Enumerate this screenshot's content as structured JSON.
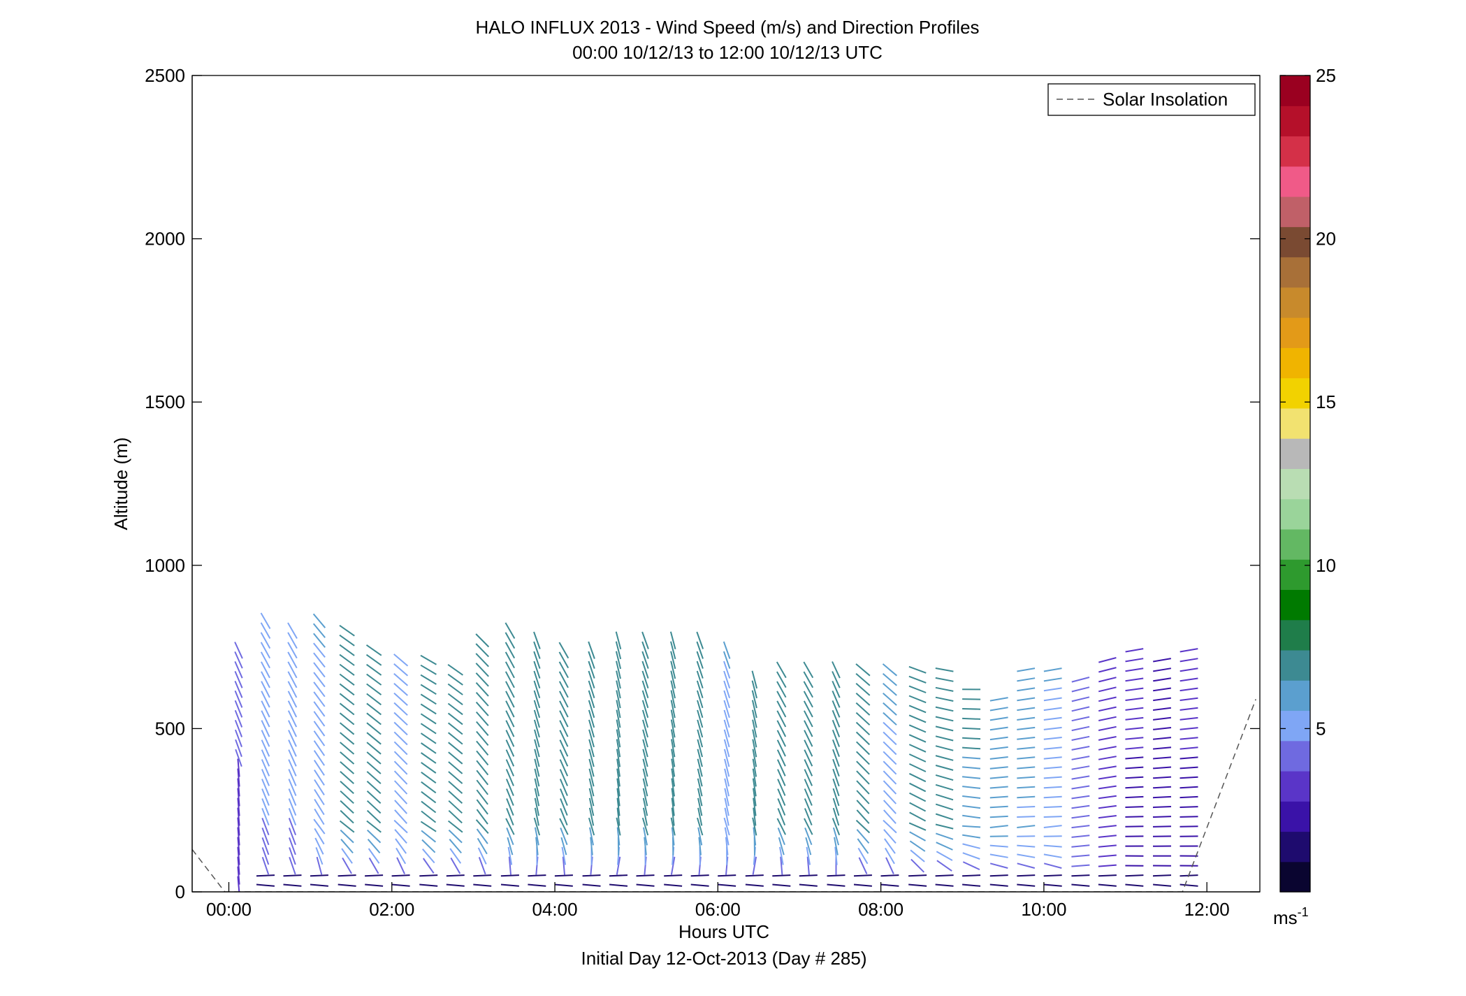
{
  "chart_data": {
    "type": "scatter",
    "subtype": "wind-barb-profiles",
    "title": "HALO INFLUX 2013 - Wind Speed (m/s) and Direction Profiles",
    "subtitle": "00:00 10/12/13 to 12:00 10/12/13  UTC",
    "xlabel": "Hours UTC",
    "xlabel2": "Initial Day 12-Oct-2013 (Day # 285)",
    "ylabel": "Altitude (m)",
    "xlim": [
      -0.45,
      12.65
    ],
    "ylim": [
      0,
      2500
    ],
    "x_ticks": [
      {
        "value": 0,
        "label": "00:00"
      },
      {
        "value": 2,
        "label": "02:00"
      },
      {
        "value": 4,
        "label": "04:00"
      },
      {
        "value": 6,
        "label": "06:00"
      },
      {
        "value": 8,
        "label": "08:00"
      },
      {
        "value": 10,
        "label": "10:00"
      },
      {
        "value": 12,
        "label": "12:00"
      }
    ],
    "y_ticks": [
      {
        "value": 0,
        "label": "0"
      },
      {
        "value": 500,
        "label": "500"
      },
      {
        "value": 1000,
        "label": "1000"
      },
      {
        "value": 1500,
        "label": "1500"
      },
      {
        "value": 2000,
        "label": "2000"
      },
      {
        "value": 2500,
        "label": "2500"
      }
    ],
    "grid": false,
    "legend": {
      "position": "top-right",
      "entries": [
        "Solar Insolation"
      ]
    },
    "colorbar": {
      "min": 0,
      "max": 25,
      "ticks": [
        {
          "value": 5,
          "label": "5"
        },
        {
          "value": 10,
          "label": "10"
        },
        {
          "value": 15,
          "label": "15"
        },
        {
          "value": 20,
          "label": "20"
        },
        {
          "value": 25,
          "label": "25"
        }
      ],
      "unit_label": "ms",
      "unit_superscript": "-1",
      "colors": [
        "#0a0530",
        "#1e0b6e",
        "#3a12a8",
        "#5a35c8",
        "#6f6ae0",
        "#7fa6f5",
        "#5b9fcf",
        "#3d8a92",
        "#1f7d4a",
        "#007a00",
        "#2e9a2e",
        "#63b863",
        "#9ad49a",
        "#b9ddb3",
        "#b8b8b8",
        "#f2e270",
        "#f2d200",
        "#f0b400",
        "#e39a18",
        "#c88a2c",
        "#a87038",
        "#7a4a32",
        "#c06068",
        "#f05a88",
        "#d43048",
        "#b5102a",
        "#9a0020"
      ]
    },
    "solar_insolation_points": [
      [
        -0.45,
        130
      ],
      [
        -0.05,
        0
      ],
      [
        11.7,
        0
      ],
      [
        12.6,
        590
      ]
    ],
    "x": [
      0.12,
      0.45,
      0.78,
      1.11,
      1.45,
      1.78,
      2.11,
      2.45,
      2.78,
      3.11,
      3.45,
      3.78,
      4.11,
      4.45,
      4.78,
      5.11,
      5.45,
      5.78,
      6.11,
      6.45,
      6.78,
      7.11,
      7.45,
      7.78,
      8.11,
      8.45,
      8.78,
      9.11,
      9.45,
      9.78,
      10.11,
      10.45,
      10.78,
      11.11,
      11.45,
      11.78
    ],
    "profile_top_m": [
      760,
      830,
      800,
      830,
      800,
      740,
      730,
      720,
      700,
      790,
      800,
      790,
      760,
      760,
      790,
      790,
      790,
      790,
      760,
      660,
      680,
      690,
      700,
      690,
      690,
      690,
      700,
      640,
      590,
      690,
      700,
      670,
      720,
      760,
      720,
      760
    ],
    "profile_speed_ms": [
      4.6,
      5.0,
      5.0,
      5.6,
      7.3,
      7.3,
      5.5,
      7.2,
      7.3,
      7.4,
      7.4,
      7.3,
      7.4,
      7.4,
      7.3,
      7.4,
      7.3,
      7.3,
      5.6,
      7.3,
      7.3,
      7.4,
      7.3,
      7.3,
      5.7,
      7.2,
      7.0,
      6.7,
      6.3,
      5.9,
      5.6,
      4.2,
      3.4,
      2.9,
      2.6,
      2.9
    ],
    "profile_direction_deg": [
      335,
      330,
      330,
      320,
      305,
      305,
      310,
      300,
      305,
      315,
      330,
      340,
      330,
      340,
      345,
      340,
      345,
      340,
      340,
      345,
      330,
      330,
      335,
      310,
      310,
      290,
      280,
      270,
      260,
      260,
      260,
      255,
      255,
      260,
      260,
      260
    ]
  }
}
